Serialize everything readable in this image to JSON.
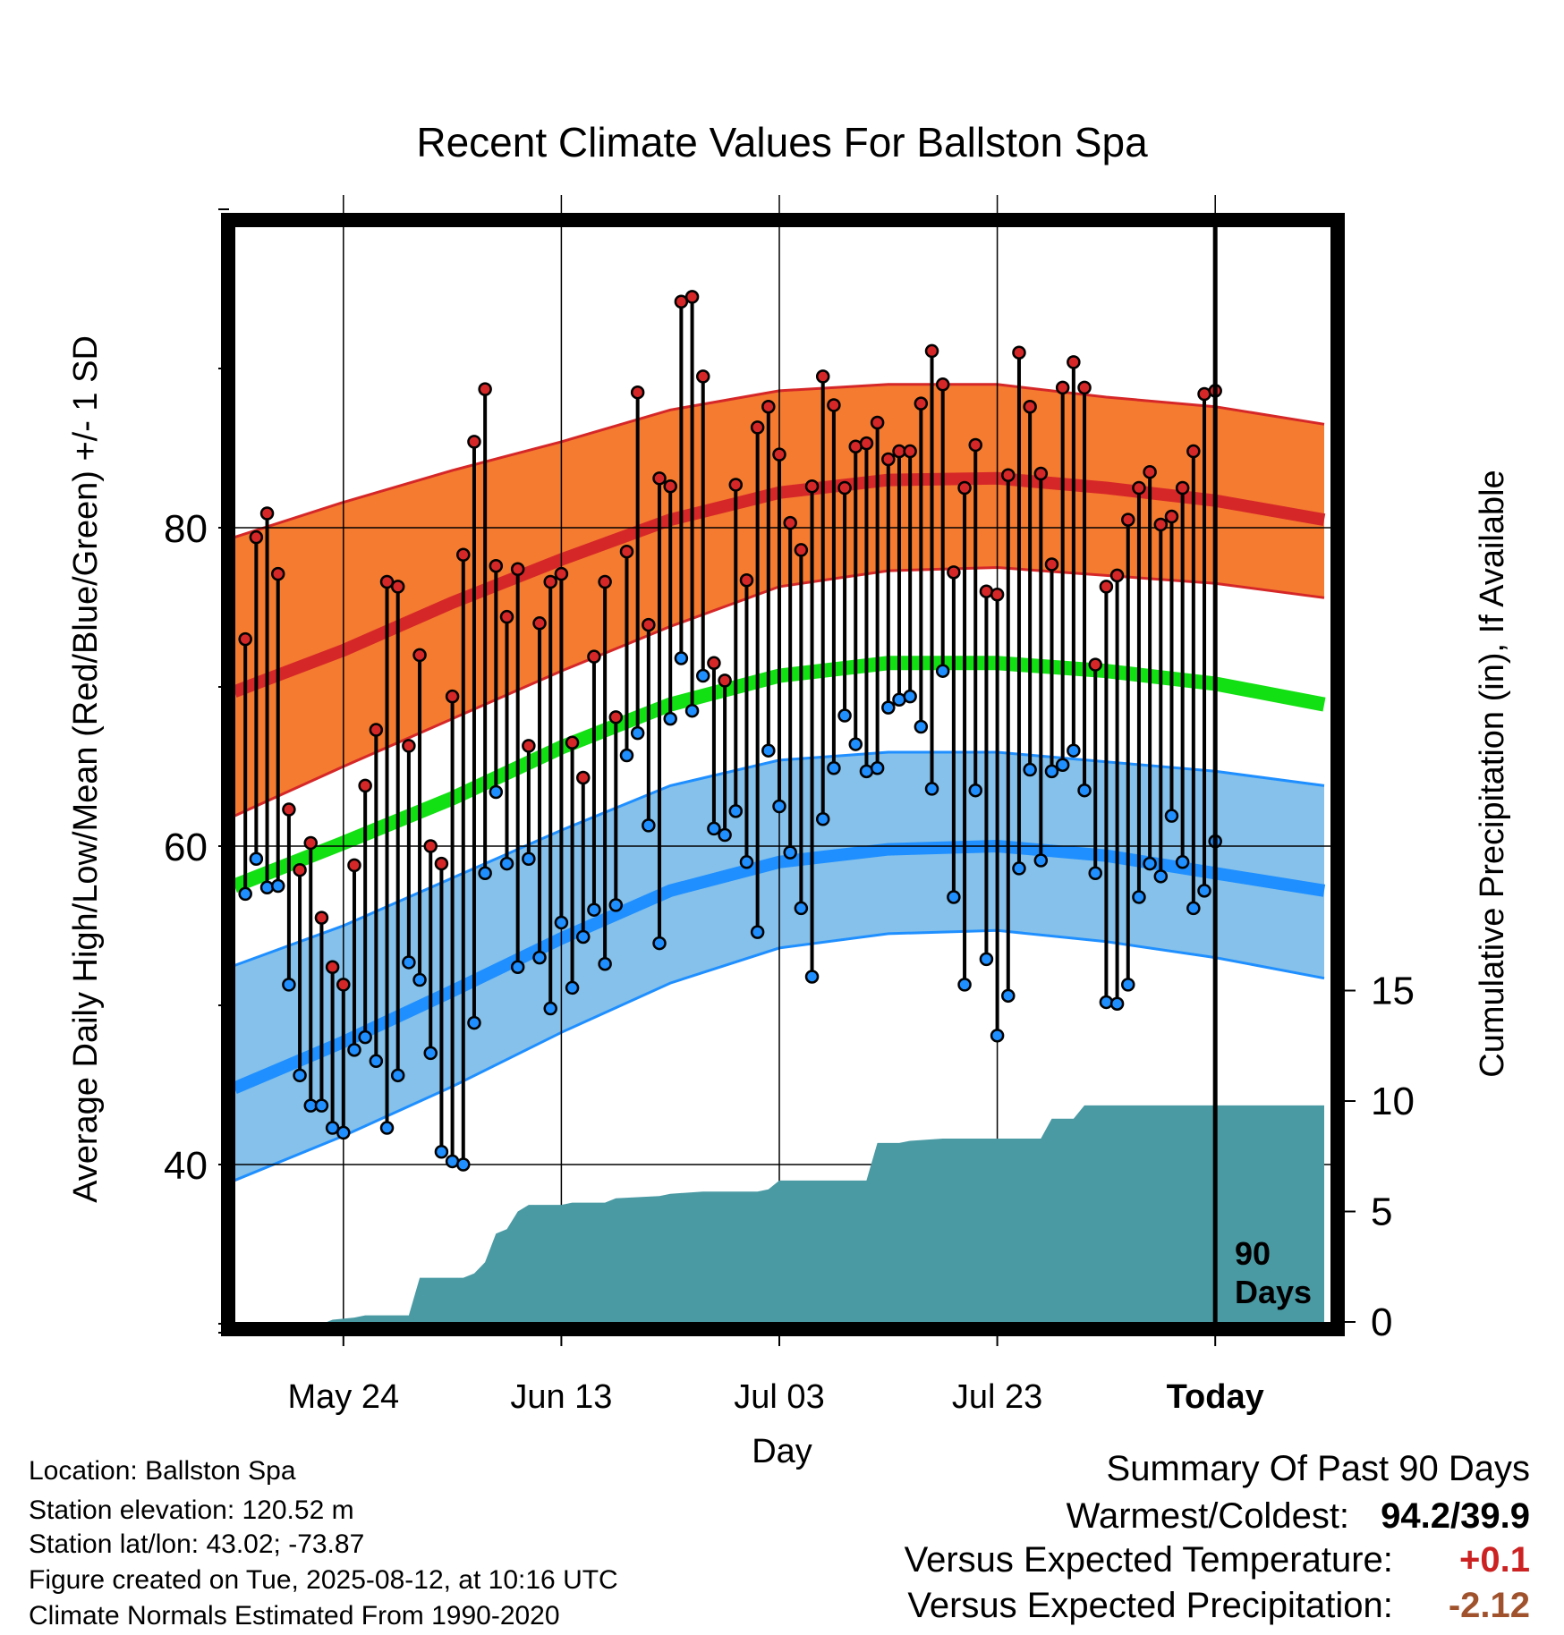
{
  "chart_data": {
    "type": "line",
    "title": "Recent Climate Values For Ballston Spa",
    "xlabel": "Day",
    "ylabel": "Average Daily High/Low/Mean (Red/Blue/Green) +/- 1 SD",
    "y2label": "Cumulative Precipitation (in), If Available",
    "ylim": [
      30.4,
      100
    ],
    "y2lim": [
      0,
      50.8
    ],
    "x_ticks": [
      {
        "day": 10,
        "label": "May 24"
      },
      {
        "day": 30,
        "label": "Jun 13"
      },
      {
        "day": 50,
        "label": "Jul 03"
      },
      {
        "day": 70,
        "label": "Jul 23"
      },
      {
        "day": 90,
        "label": "Today"
      }
    ],
    "y_ticks": [
      40,
      60,
      80
    ],
    "y2_ticks": [
      0,
      5,
      10,
      15
    ],
    "grid": true,
    "marker_label": "90 Days",
    "marker_day": 90,
    "colors": {
      "high": "#d62728",
      "high_band": "#f47b30",
      "low": "#1f8fff",
      "low_band": "#85c1ea",
      "mean": "#13e013",
      "precip": "#4a9aa4"
    },
    "normal_high": [
      {
        "day": 0,
        "mean": 69.7,
        "lo": 61.9,
        "hi": 79.4
      },
      {
        "day": 10,
        "mean": 72.3,
        "lo": 65.0,
        "hi": 81.6
      },
      {
        "day": 20,
        "mean": 75.3,
        "lo": 68.0,
        "hi": 83.6
      },
      {
        "day": 30,
        "mean": 78.0,
        "lo": 71.0,
        "hi": 85.4
      },
      {
        "day": 40,
        "mean": 80.5,
        "lo": 73.8,
        "hi": 87.4
      },
      {
        "day": 50,
        "mean": 82.2,
        "lo": 76.3,
        "hi": 88.6
      },
      {
        "day": 60,
        "mean": 83.0,
        "lo": 77.3,
        "hi": 89.0
      },
      {
        "day": 70,
        "mean": 83.1,
        "lo": 77.5,
        "hi": 89.0
      },
      {
        "day": 80,
        "mean": 82.5,
        "lo": 77.0,
        "hi": 88.2
      },
      {
        "day": 90,
        "mean": 81.7,
        "lo": 76.5,
        "hi": 87.6
      },
      {
        "day": 100,
        "mean": 80.5,
        "lo": 75.6,
        "hi": 86.5
      }
    ],
    "normal_low": [
      {
        "day": 0,
        "mean": 44.8,
        "lo": 39.0,
        "hi": 52.5
      },
      {
        "day": 10,
        "mean": 47.7,
        "lo": 41.8,
        "hi": 55.0
      },
      {
        "day": 20,
        "mean": 50.9,
        "lo": 44.9,
        "hi": 58.0
      },
      {
        "day": 30,
        "mean": 54.2,
        "lo": 48.3,
        "hi": 61.0
      },
      {
        "day": 40,
        "mean": 57.2,
        "lo": 51.4,
        "hi": 63.8
      },
      {
        "day": 50,
        "mean": 59.0,
        "lo": 53.6,
        "hi": 65.4
      },
      {
        "day": 60,
        "mean": 59.8,
        "lo": 54.5,
        "hi": 65.9
      },
      {
        "day": 70,
        "mean": 60.0,
        "lo": 54.7,
        "hi": 65.9
      },
      {
        "day": 80,
        "mean": 59.4,
        "lo": 54.0,
        "hi": 65.3
      },
      {
        "day": 90,
        "mean": 58.3,
        "lo": 53.0,
        "hi": 64.7
      },
      {
        "day": 100,
        "mean": 57.2,
        "lo": 51.7,
        "hi": 63.8
      }
    ],
    "normal_mean": [
      {
        "day": 0,
        "v": 57.5
      },
      {
        "day": 10,
        "v": 60.2
      },
      {
        "day": 20,
        "v": 63.0
      },
      {
        "day": 30,
        "v": 66.2
      },
      {
        "day": 40,
        "v": 68.9
      },
      {
        "day": 50,
        "v": 70.7
      },
      {
        "day": 60,
        "v": 71.5
      },
      {
        "day": 70,
        "v": 71.5
      },
      {
        "day": 80,
        "v": 71.0
      },
      {
        "day": 90,
        "v": 70.2
      },
      {
        "day": 100,
        "v": 68.9
      }
    ],
    "daily": [
      {
        "day": 1,
        "high": 73.0,
        "low": 57.0
      },
      {
        "day": 2,
        "high": 79.4,
        "low": 59.2
      },
      {
        "day": 3,
        "high": 80.9,
        "low": 57.4
      },
      {
        "day": 4,
        "high": 77.1,
        "low": 57.5
      },
      {
        "day": 5,
        "high": 62.3,
        "low": 51.3
      },
      {
        "day": 6,
        "high": 58.5,
        "low": 45.6
      },
      {
        "day": 7,
        "high": 60.2,
        "low": 43.7
      },
      {
        "day": 8,
        "high": 55.5,
        "low": 43.7
      },
      {
        "day": 9,
        "high": 52.4,
        "low": 42.3
      },
      {
        "day": 10,
        "high": 51.3,
        "low": 42.0
      },
      {
        "day": 11,
        "high": 58.8,
        "low": 47.2
      },
      {
        "day": 12,
        "high": 63.8,
        "low": 48.0
      },
      {
        "day": 13,
        "high": 67.3,
        "low": 46.5
      },
      {
        "day": 14,
        "high": 76.6,
        "low": 42.3
      },
      {
        "day": 15,
        "high": 76.3,
        "low": 45.6
      },
      {
        "day": 16,
        "high": 66.3,
        "low": 52.7
      },
      {
        "day": 17,
        "high": 72.0,
        "low": 51.6
      },
      {
        "day": 18,
        "high": 60.0,
        "low": 47.0
      },
      {
        "day": 19,
        "high": 58.9,
        "low": 40.8
      },
      {
        "day": 20,
        "high": 69.4,
        "low": 40.2
      },
      {
        "day": 21,
        "high": 78.3,
        "low": 40.0
      },
      {
        "day": 22,
        "high": 85.4,
        "low": 48.9
      },
      {
        "day": 23,
        "high": 88.7,
        "low": 58.3
      },
      {
        "day": 24,
        "high": 77.6,
        "low": 63.4
      },
      {
        "day": 25,
        "high": 74.4,
        "low": 58.9
      },
      {
        "day": 26,
        "high": 77.4,
        "low": 52.4
      },
      {
        "day": 27,
        "high": 66.3,
        "low": 59.2
      },
      {
        "day": 28,
        "high": 74.0,
        "low": 53.0
      },
      {
        "day": 29,
        "high": 76.6,
        "low": 49.8
      },
      {
        "day": 30,
        "high": 77.1,
        "low": 55.2
      },
      {
        "day": 31,
        "high": 66.5,
        "low": 51.1
      },
      {
        "day": 32,
        "high": 64.3,
        "low": 54.3
      },
      {
        "day": 33,
        "high": 71.9,
        "low": 56.0
      },
      {
        "day": 34,
        "high": 76.6,
        "low": 52.6
      },
      {
        "day": 35,
        "high": 68.1,
        "low": 56.3
      },
      {
        "day": 36,
        "high": 78.5,
        "low": 65.7
      },
      {
        "day": 37,
        "high": 88.5,
        "low": 67.1
      },
      {
        "day": 38,
        "high": 73.9,
        "low": 61.3
      },
      {
        "day": 39,
        "high": 83.1,
        "low": 53.9
      },
      {
        "day": 40,
        "high": 82.6,
        "low": 68.0
      },
      {
        "day": 41,
        "high": 94.2,
        "low": 71.8
      },
      {
        "day": 42,
        "high": 94.5,
        "low": 68.5
      },
      {
        "day": 43,
        "high": 89.5,
        "low": 70.7
      },
      {
        "day": 44,
        "high": 71.5,
        "low": 61.1
      },
      {
        "day": 45,
        "high": 70.4,
        "low": 60.7
      },
      {
        "day": 46,
        "high": 82.7,
        "low": 62.2
      },
      {
        "day": 47,
        "high": 76.7,
        "low": 59.0
      },
      {
        "day": 48,
        "high": 86.3,
        "low": 54.6
      },
      {
        "day": 49,
        "high": 87.6,
        "low": 66.0
      },
      {
        "day": 50,
        "high": 84.6,
        "low": 62.5
      },
      {
        "day": 51,
        "high": 80.3,
        "low": 59.6
      },
      {
        "day": 52,
        "high": 78.6,
        "low": 56.1
      },
      {
        "day": 53,
        "high": 82.6,
        "low": 51.8
      },
      {
        "day": 54,
        "high": 89.5,
        "low": 61.7
      },
      {
        "day": 55,
        "high": 87.7,
        "low": 64.9
      },
      {
        "day": 56,
        "high": 82.5,
        "low": 68.2
      },
      {
        "day": 57,
        "high": 85.1,
        "low": 66.4
      },
      {
        "day": 58,
        "high": 85.3,
        "low": 64.7
      },
      {
        "day": 59,
        "high": 86.6,
        "low": 64.9
      },
      {
        "day": 60,
        "high": 84.3,
        "low": 68.7
      },
      {
        "day": 61,
        "high": 84.8,
        "low": 69.2
      },
      {
        "day": 62,
        "high": 84.8,
        "low": 69.4
      },
      {
        "day": 63,
        "high": 87.8,
        "low": 67.5
      },
      {
        "day": 64,
        "high": 91.1,
        "low": 63.6
      },
      {
        "day": 65,
        "high": 89.0,
        "low": 71.0
      },
      {
        "day": 66,
        "high": 77.2,
        "low": 56.8
      },
      {
        "day": 67,
        "high": 82.5,
        "low": 51.3
      },
      {
        "day": 68,
        "high": 85.2,
        "low": 63.5
      },
      {
        "day": 69,
        "high": 76.0,
        "low": 52.9
      },
      {
        "day": 70,
        "high": 75.8,
        "low": 48.1
      },
      {
        "day": 71,
        "high": 83.3,
        "low": 50.6
      },
      {
        "day": 72,
        "high": 91.0,
        "low": 58.6
      },
      {
        "day": 73,
        "high": 87.6,
        "low": 64.8
      },
      {
        "day": 74,
        "high": 83.4,
        "low": 59.1
      },
      {
        "day": 75,
        "high": 77.7,
        "low": 64.7
      },
      {
        "day": 76,
        "high": 88.8,
        "low": 65.1
      },
      {
        "day": 77,
        "high": 90.4,
        "low": 66.0
      },
      {
        "day": 78,
        "high": 88.8,
        "low": 63.5
      },
      {
        "day": 79,
        "high": 71.4,
        "low": 58.3
      },
      {
        "day": 80,
        "high": 76.3,
        "low": 50.2
      },
      {
        "day": 81,
        "high": 77.0,
        "low": 50.1
      },
      {
        "day": 82,
        "high": 80.5,
        "low": 51.3
      },
      {
        "day": 83,
        "high": 82.5,
        "low": 56.8
      },
      {
        "day": 84,
        "high": 83.5,
        "low": 58.9
      },
      {
        "day": 85,
        "high": 80.2,
        "low": 58.1
      },
      {
        "day": 86,
        "high": 80.7,
        "low": 61.9
      },
      {
        "day": 87,
        "high": 82.5,
        "low": 59.0
      },
      {
        "day": 88,
        "high": 84.8,
        "low": 56.1
      },
      {
        "day": 89,
        "high": 88.4,
        "low": 57.2
      },
      {
        "day": 90,
        "high": 88.6,
        "low": 60.3
      }
    ],
    "cumulative_precip": [
      {
        "day": 0,
        "v": 0
      },
      {
        "day": 8.5,
        "v": 0
      },
      {
        "day": 9,
        "v": 0.1
      },
      {
        "day": 11,
        "v": 0.2
      },
      {
        "day": 12,
        "v": 0.3
      },
      {
        "day": 16,
        "v": 0.3
      },
      {
        "day": 17,
        "v": 2.0
      },
      {
        "day": 21,
        "v": 2.0
      },
      {
        "day": 22,
        "v": 2.2
      },
      {
        "day": 23,
        "v": 2.7
      },
      {
        "day": 24,
        "v": 4.0
      },
      {
        "day": 25,
        "v": 4.2
      },
      {
        "day": 26,
        "v": 5.0
      },
      {
        "day": 27,
        "v": 5.3
      },
      {
        "day": 30,
        "v": 5.3
      },
      {
        "day": 31,
        "v": 5.4
      },
      {
        "day": 34,
        "v": 5.4
      },
      {
        "day": 35,
        "v": 5.6
      },
      {
        "day": 39,
        "v": 5.7
      },
      {
        "day": 40,
        "v": 5.8
      },
      {
        "day": 43,
        "v": 5.9
      },
      {
        "day": 48,
        "v": 5.9
      },
      {
        "day": 49,
        "v": 6.0
      },
      {
        "day": 50,
        "v": 6.4
      },
      {
        "day": 58,
        "v": 6.4
      },
      {
        "day": 59,
        "v": 8.1
      },
      {
        "day": 61,
        "v": 8.1
      },
      {
        "day": 62,
        "v": 8.2
      },
      {
        "day": 65,
        "v": 8.3
      },
      {
        "day": 74,
        "v": 8.3
      },
      {
        "day": 75,
        "v": 9.2
      },
      {
        "day": 77,
        "v": 9.2
      },
      {
        "day": 78,
        "v": 9.8
      },
      {
        "day": 100,
        "v": 9.8
      }
    ]
  },
  "info": {
    "location": "Location: Ballston Spa",
    "elevation": "Station elevation: 120.52 m",
    "latlon": "Station lat/lon: 43.02; -73.87",
    "created": "Figure created on Tue, 2025-08-12, at 10:16 UTC",
    "normals": "Climate Normals Estimated From 1990-2020"
  },
  "summary": {
    "title": "Summary Of Past 90 Days",
    "warmest_coldest_label": "Warmest/Coldest:",
    "warmest_coldest_value": "94.2/39.9",
    "temp_label": "Versus Expected Temperature:",
    "temp_value": "+0.1",
    "temp_color": "#cc2222",
    "precip_label": "Versus Expected Precipitation:",
    "precip_value": "-2.12",
    "precip_color": "#a0522d"
  }
}
